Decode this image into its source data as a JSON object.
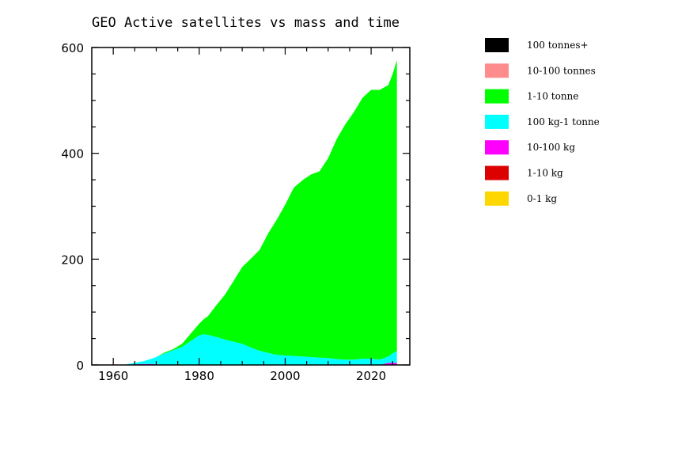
{
  "chart_data": {
    "type": "area",
    "title": "GEO Active satellites vs mass and time",
    "xlabel": "",
    "ylabel": "",
    "xlim": [
      1955,
      2029
    ],
    "ylim": [
      0,
      600
    ],
    "x_ticks": [
      1960,
      1980,
      2000,
      2020
    ],
    "y_ticks": [
      0,
      200,
      400,
      600
    ],
    "x_tick_labels": [
      "1960",
      "1980",
      "2000",
      "2020"
    ],
    "y_tick_labels": [
      "0",
      "200",
      "400",
      "600"
    ],
    "stacked": true,
    "legend_placement": "right",
    "x": [
      1963,
      1965,
      1967,
      1969,
      1970,
      1972,
      1974,
      1976,
      1978,
      1980,
      1981,
      1982,
      1984,
      1986,
      1988,
      1990,
      1992,
      1994,
      1996,
      1998,
      2000,
      2002,
      2004,
      2006,
      2008,
      2010,
      2012,
      2014,
      2016,
      2018,
      2020,
      2022,
      2024,
      2025,
      2026
    ],
    "series": [
      {
        "name": "0-1 kg",
        "color": "#ffd700",
        "values": [
          0,
          0,
          0,
          0,
          0,
          0,
          0,
          0,
          0,
          0,
          0,
          0,
          0,
          0,
          0,
          0,
          0,
          0,
          0,
          0,
          0,
          0,
          0,
          0,
          0,
          0,
          0,
          0,
          0,
          0,
          0,
          0,
          0,
          0,
          0
        ]
      },
      {
        "name": "1-10 kg",
        "color": "#dd0000",
        "values": [
          0,
          0,
          0,
          0,
          0,
          0,
          0,
          0,
          0,
          0,
          0,
          0,
          0,
          0,
          0,
          0,
          0,
          0,
          0,
          0,
          0,
          0,
          0,
          0,
          0,
          0,
          0,
          0,
          0,
          0,
          0,
          0,
          0,
          0,
          0
        ]
      },
      {
        "name": "10-100 kg",
        "color": "#ff00ff",
        "values": [
          0,
          1,
          2,
          2,
          1,
          0,
          0,
          0,
          0,
          0,
          0,
          0,
          0,
          0,
          0,
          0,
          0,
          0,
          0,
          0,
          0,
          0,
          0,
          0,
          0,
          0,
          0,
          0,
          0,
          0,
          0,
          0,
          4,
          4,
          4
        ]
      },
      {
        "name": "100 kg-1 tonne",
        "color": "#00ffff",
        "values": [
          1,
          3,
          5,
          10,
          14,
          22,
          28,
          34,
          45,
          56,
          58,
          57,
          53,
          48,
          44,
          40,
          33,
          27,
          23,
          19,
          18,
          17,
          16,
          15,
          14,
          13,
          11,
          10,
          10,
          12,
          12,
          10,
          12,
          18,
          22
        ]
      },
      {
        "name": "1-10 tonne",
        "color": "#00ff00",
        "values": [
          0,
          0,
          0,
          0,
          0,
          2,
          2,
          6,
          14,
          22,
          28,
          35,
          60,
          85,
          115,
          145,
          168,
          190,
          225,
          255,
          285,
          318,
          333,
          345,
          352,
          378,
          416,
          445,
          468,
          493,
          508,
          510,
          513,
          528,
          550
        ]
      },
      {
        "name": "10-100 tonnes",
        "color": "#ff8c8c",
        "values": [
          0,
          0,
          0,
          0,
          0,
          0,
          0,
          0,
          0,
          0,
          0,
          0,
          0,
          0,
          0,
          0,
          0,
          0,
          0,
          0,
          0,
          0,
          0,
          0,
          0,
          0,
          0,
          0,
          0,
          0,
          0,
          0,
          0,
          0,
          0
        ]
      },
      {
        "name": "100 tonnes+",
        "color": "#000000",
        "values": [
          0,
          0,
          0,
          0,
          0,
          0,
          0,
          0,
          0,
          0,
          0,
          0,
          0,
          0,
          0,
          0,
          0,
          0,
          0,
          0,
          0,
          0,
          0,
          0,
          0,
          0,
          0,
          0,
          0,
          0,
          0,
          0,
          0,
          0,
          0
        ]
      }
    ]
  }
}
